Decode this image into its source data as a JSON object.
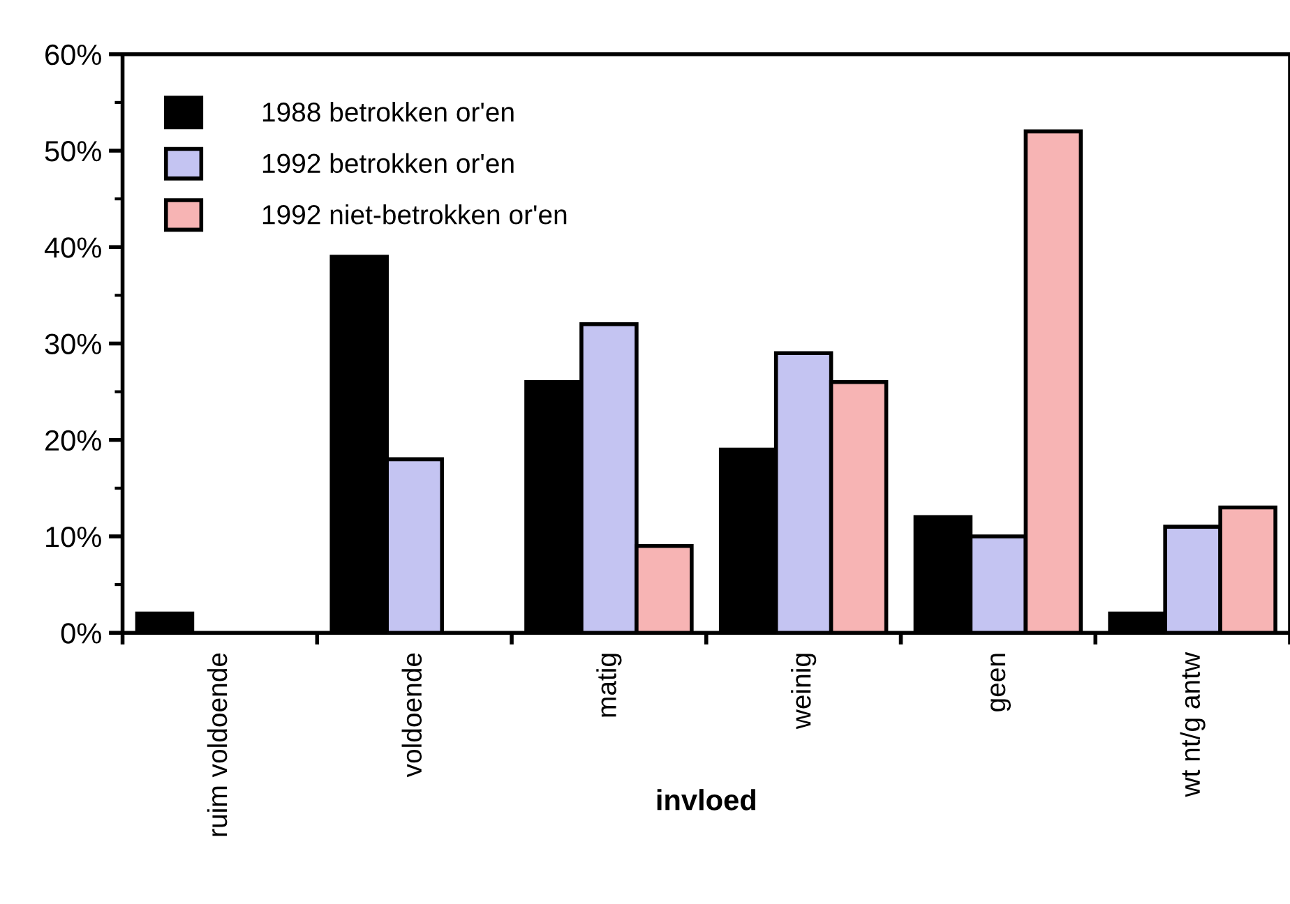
{
  "chart_data": {
    "type": "bar",
    "xlabel": "invloed",
    "categories": [
      "ruim voldoende",
      "voldoende",
      "matig",
      "weinig",
      "geen",
      "wt nt/g antw"
    ],
    "series": [
      {
        "name": "1988 betrokken or'en",
        "color": "#000000",
        "values": [
          2,
          39,
          26,
          19,
          12,
          2
        ]
      },
      {
        "name": "1992 betrokken or'en",
        "color": "#c4c4f2",
        "values": [
          null,
          18,
          32,
          29,
          10,
          11
        ]
      },
      {
        "name": "1992 niet-betrokken or'en",
        "color": "#f7b4b4",
        "values": [
          null,
          null,
          9,
          26,
          52,
          13
        ]
      }
    ],
    "ylim": [
      0,
      60
    ],
    "yticks": [
      {
        "value": 0,
        "label": "0%"
      },
      {
        "value": 10,
        "label": "10%"
      },
      {
        "value": 20,
        "label": "20%"
      },
      {
        "value": 30,
        "label": "30%"
      },
      {
        "value": 40,
        "label": "40%"
      },
      {
        "value": 50,
        "label": "50%"
      },
      {
        "value": 60,
        "label": "60%"
      }
    ],
    "legend": "top left",
    "grid": false
  }
}
